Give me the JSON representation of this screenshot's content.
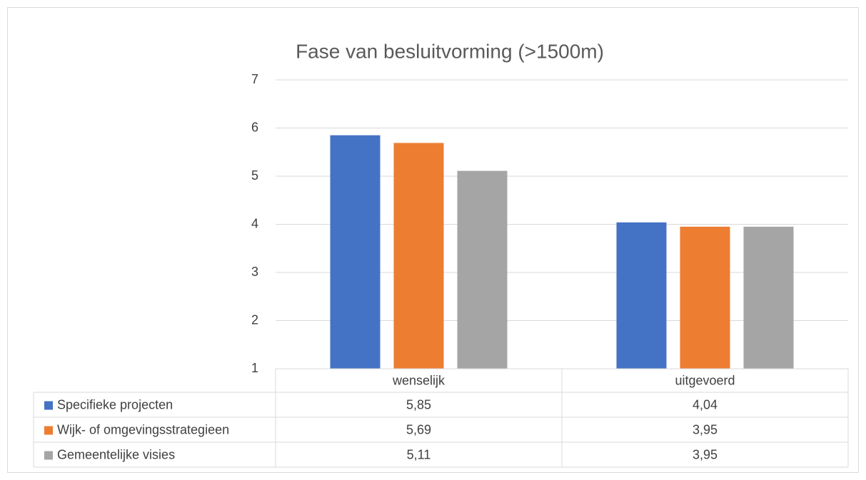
{
  "chart_data": {
    "type": "bar",
    "title": "Fase van besluitvorming (>1500m)",
    "categories": [
      "wenselijk",
      "uitgevoerd"
    ],
    "series": [
      {
        "name": "Specifieke projecten",
        "color": "#4472c4",
        "values": [
          5.85,
          4.04
        ],
        "value_labels": [
          "5,85",
          "4,04"
        ]
      },
      {
        "name": "Wijk- of omgevingsstrategieen",
        "color": "#ed7d31",
        "values": [
          5.69,
          3.95
        ],
        "value_labels": [
          "5,69",
          "3,95"
        ]
      },
      {
        "name": "Gemeentelijke visies",
        "color": "#a5a5a5",
        "values": [
          5.11,
          3.95
        ],
        "value_labels": [
          "5,11",
          "3,95"
        ]
      }
    ],
    "ylim": [
      1,
      7
    ],
    "yticks": [
      1,
      2,
      3,
      4,
      5,
      6,
      7
    ],
    "grid": true
  }
}
